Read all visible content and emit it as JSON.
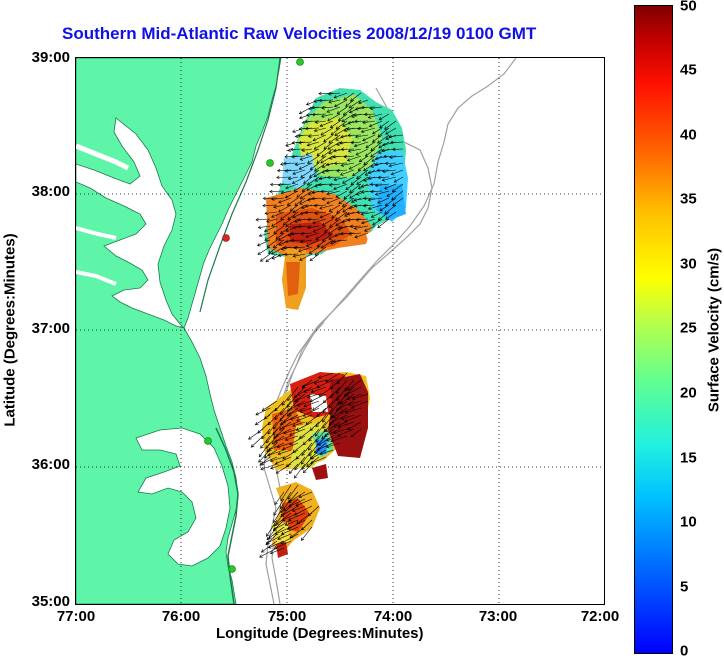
{
  "title": "Southern Mid-Atlantic Raw Velocities 2008/12/19 0100 GMT",
  "xlabel": "Longitude (Degrees:Minutes)",
  "ylabel": "Latitude (Degrees:Minutes)",
  "colorbar_label": "Surface Velocity (cm/s)",
  "x_ticks": [
    "77:00",
    "76:00",
    "75:00",
    "74:00",
    "73:00",
    "72:00"
  ],
  "y_ticks": [
    "39:00",
    "38:00",
    "37:00",
    "36:00",
    "35:00"
  ],
  "colorbar_ticks": [
    "0",
    "5",
    "10",
    "15",
    "20",
    "25",
    "30",
    "35",
    "40",
    "45",
    "50"
  ],
  "colors": {
    "title": "#1010e8",
    "land": "#5ff5a8",
    "coast_outline": "#1a7a4a",
    "bathymetry": "#a0a0a0",
    "station_green": "#22cc22",
    "station_red": "#dd2222"
  },
  "map": {
    "lon_range": [
      -77,
      -72
    ],
    "lat_range": [
      35,
      39
    ],
    "colormap": "jet",
    "velocity_range_cm_s": [
      0,
      50
    ]
  }
}
